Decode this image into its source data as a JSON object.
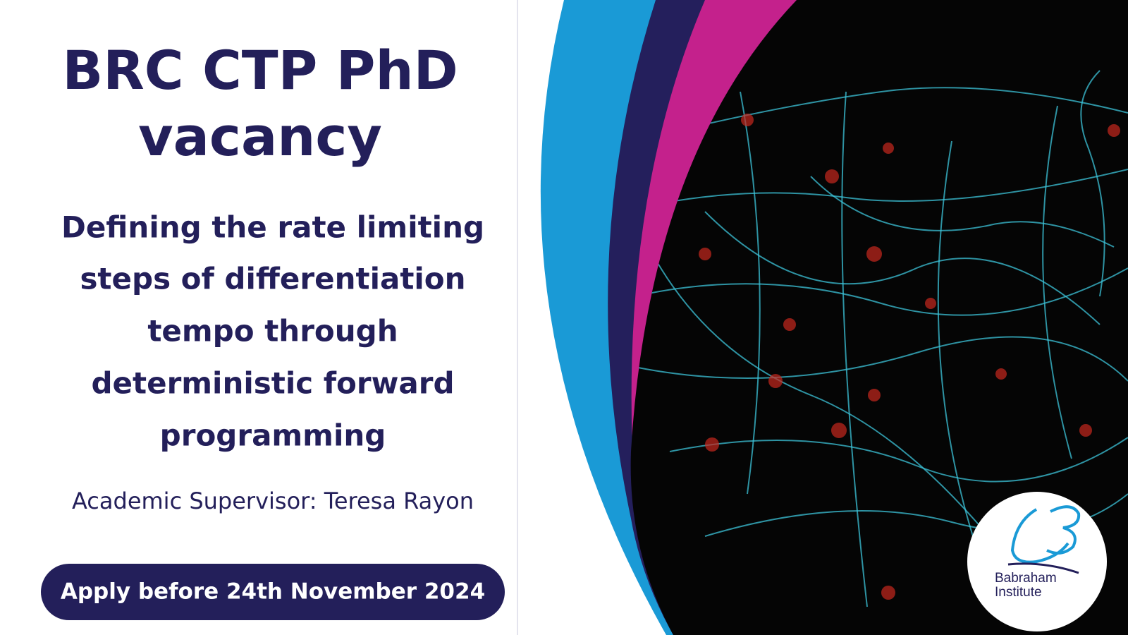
{
  "header": {
    "title_lines": [
      "BRC CTP PhD",
      "vacancy"
    ]
  },
  "project": {
    "title_lines": [
      "Defining the rate limiting",
      "steps of differentiation",
      "tempo through",
      "deterministic forward",
      "programming"
    ]
  },
  "supervisor": "Academic Supervisor: Teresa Rayon",
  "button": "Apply before 24th November 2024",
  "logo": {
    "lines": [
      "Babraham",
      "Institute"
    ]
  }
}
